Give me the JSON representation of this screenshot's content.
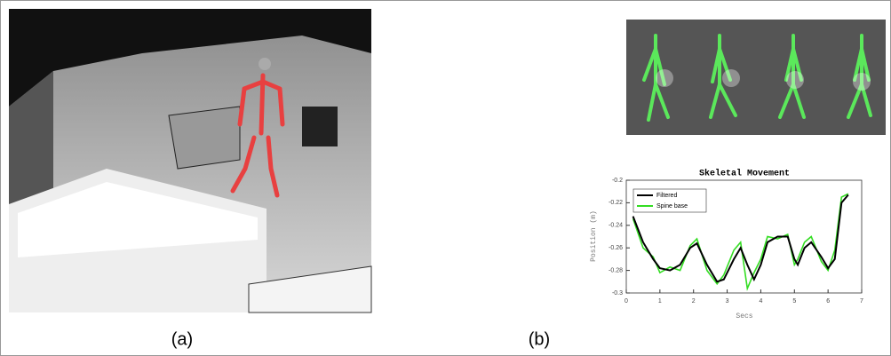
{
  "panels": [
    "(a)",
    "(b)"
  ],
  "chart_data": {
    "type": "line",
    "title": "Skeletal Movement",
    "x_label": "Secs",
    "y_label": "Position (m)",
    "x": [
      0.2,
      0.5,
      0.8,
      1.0,
      1.3,
      1.6,
      1.9,
      2.1,
      2.4,
      2.7,
      2.9,
      3.2,
      3.4,
      3.6,
      3.8,
      4.0,
      4.2,
      4.5,
      4.8,
      5.0,
      5.1,
      5.3,
      5.5,
      5.8,
      6.0,
      6.2,
      6.4,
      6.6
    ],
    "series": [
      {
        "name": "Filtered",
        "color": "#000000",
        "values": [
          -0.232,
          -0.255,
          -0.27,
          -0.278,
          -0.28,
          -0.275,
          -0.26,
          -0.256,
          -0.275,
          -0.29,
          -0.288,
          -0.27,
          -0.26,
          -0.275,
          -0.288,
          -0.275,
          -0.255,
          -0.25,
          -0.25,
          -0.27,
          -0.275,
          -0.26,
          -0.255,
          -0.268,
          -0.278,
          -0.27,
          -0.22,
          -0.213
        ]
      },
      {
        "name": "Spine base",
        "color": "#33dd22",
        "values": [
          -0.234,
          -0.26,
          -0.268,
          -0.282,
          -0.277,
          -0.28,
          -0.258,
          -0.252,
          -0.28,
          -0.292,
          -0.284,
          -0.262,
          -0.255,
          -0.296,
          -0.282,
          -0.27,
          -0.25,
          -0.252,
          -0.248,
          -0.275,
          -0.27,
          -0.255,
          -0.25,
          -0.272,
          -0.28,
          -0.262,
          -0.215,
          -0.212
        ]
      }
    ],
    "xlim": [
      0,
      7
    ],
    "xticks": [
      0,
      1,
      2,
      3,
      4,
      5,
      6,
      7
    ],
    "ylim": [
      -0.3,
      -0.2
    ],
    "yticks": [
      -0.2,
      -0.22,
      -0.24,
      -0.26,
      -0.28,
      -0.3
    ],
    "legend": "upper left"
  }
}
